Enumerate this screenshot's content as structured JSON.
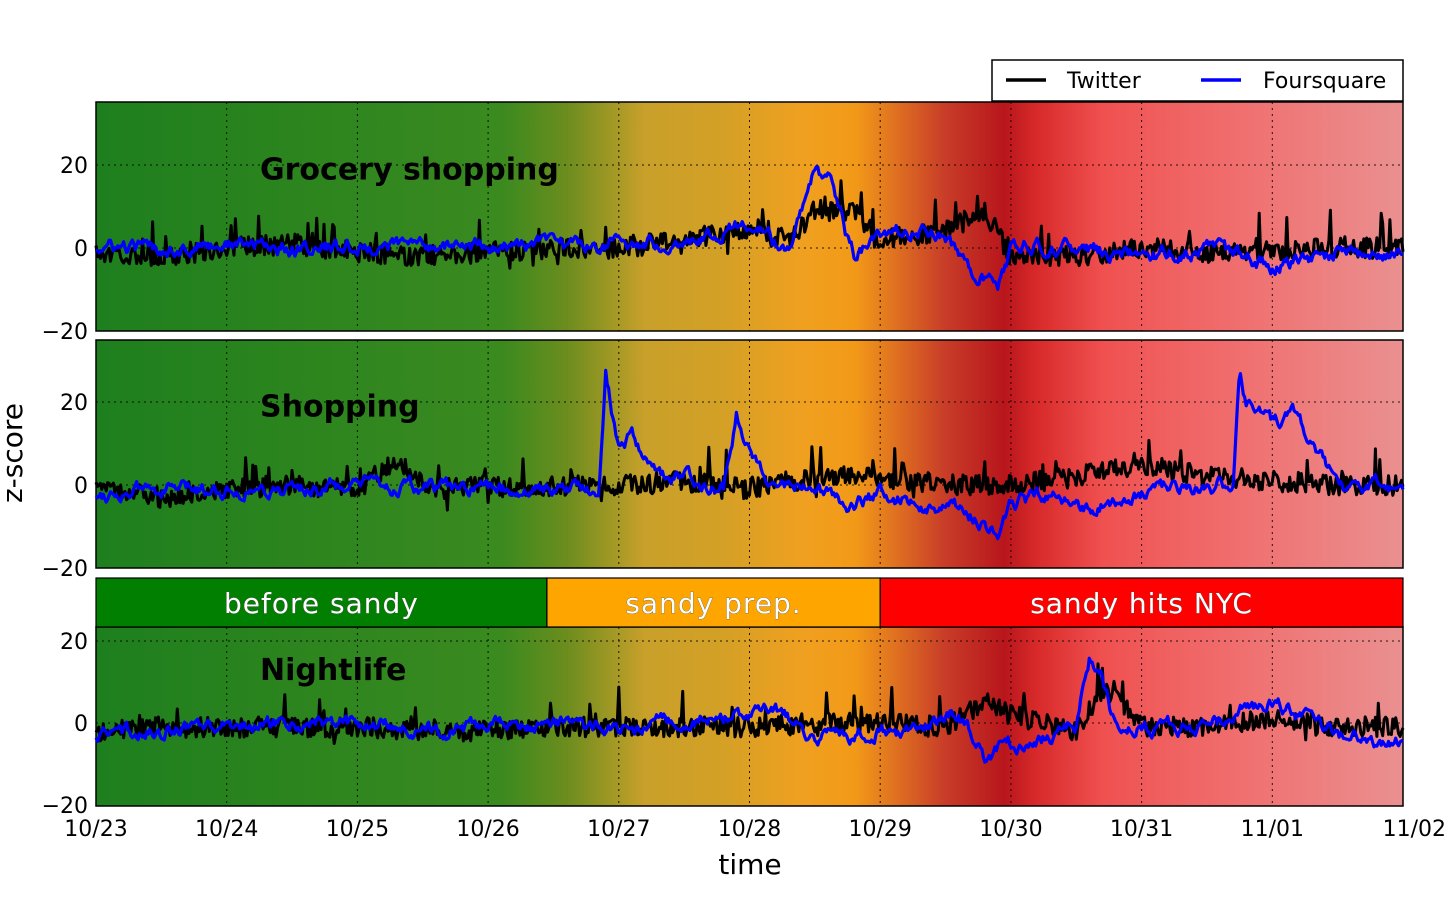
{
  "chart_data": {
    "type": "line",
    "ylabel": "z-score",
    "xlabel": "time",
    "x_ticks": [
      "10/23",
      "10/24",
      "10/25",
      "10/26",
      "10/27",
      "10/28",
      "10/29",
      "10/30",
      "10/31",
      "11/01",
      "11/02"
    ],
    "x_range_days": [
      0,
      10
    ],
    "y_range": [
      -20,
      35
    ],
    "y_ticks": [
      20,
      0,
      -20
    ],
    "y_tick_labels": [
      "20",
      "0",
      "−20"
    ],
    "legend": [
      {
        "name": "Twitter",
        "color": "#000000"
      },
      {
        "name": "Foursquare",
        "color": "#0000ff"
      }
    ],
    "phases": [
      {
        "label": "before sandy",
        "start_day": 0,
        "end_day": 3.45,
        "color": "#007f00"
      },
      {
        "label": "sandy prep.",
        "start_day": 3.45,
        "end_day": 6.0,
        "color": "#ffa500"
      },
      {
        "label": "sandy hits NYC",
        "start_day": 6.0,
        "end_day": 10,
        "color": "#ff0000"
      }
    ],
    "panels": [
      {
        "title": "Grocery shopping",
        "series": [
          {
            "name": "Twitter",
            "x": [
              0,
              0.5,
              1,
              1.5,
              2,
              2.5,
              3,
              3.5,
              4,
              4.5,
              5,
              5.3,
              5.5,
              5.8,
              6,
              6.5,
              6.8,
              7,
              7.5,
              8,
              8.5,
              9,
              9.5,
              10
            ],
            "y": [
              -1,
              -2,
              0,
              1,
              -1,
              -2,
              -1,
              0,
              0,
              2,
              5,
              2,
              9,
              9,
              2,
              4,
              9,
              -2,
              -2,
              0,
              -1,
              -1,
              0,
              0
            ]
          },
          {
            "name": "Foursquare",
            "x": [
              0,
              0.5,
              1,
              1.5,
              2,
              2.5,
              3,
              3.5,
              4,
              4.5,
              5,
              5.3,
              5.5,
              5.6,
              5.8,
              6,
              6.4,
              6.7,
              6.9,
              7,
              7.5,
              8,
              8.5,
              9,
              9.5,
              10
            ],
            "y": [
              0,
              0,
              1,
              0,
              0,
              1,
              0,
              1,
              1,
              2,
              6,
              -1,
              18,
              16,
              -2,
              3,
              5,
              -5,
              -10,
              0,
              0,
              -2,
              0,
              -4,
              -1,
              -2
            ]
          }
        ]
      },
      {
        "title": "Shopping",
        "series": [
          {
            "name": "Twitter",
            "x": [
              0,
              0.5,
              1,
              1.5,
              2,
              2.3,
              2.6,
              3,
              3.2,
              3.5,
              4,
              4.5,
              5,
              5.5,
              6,
              6.5,
              7,
              7.5,
              8,
              8.5,
              9,
              9.5,
              10
            ],
            "y": [
              0,
              -3,
              -1,
              0,
              -1,
              6,
              -1,
              0,
              -1,
              0,
              0,
              1,
              -1,
              2,
              2,
              0,
              0,
              2,
              5,
              2,
              1,
              0,
              0
            ]
          },
          {
            "name": "Foursquare",
            "x": [
              0,
              0.5,
              1,
              1.5,
              2,
              2.5,
              3,
              3.5,
              3.85,
              3.9,
              4,
              4.1,
              4.3,
              4.5,
              4.8,
              4.9,
              5,
              5.2,
              5.5,
              5.8,
              6,
              6.3,
              6.6,
              6.9,
              7,
              7.3,
              7.5,
              8,
              8.5,
              8.7,
              8.75,
              8.8,
              8.9,
              9,
              9.2,
              9.4,
              9.5,
              9.6,
              10
            ],
            "y": [
              -2,
              -1,
              -1,
              -1,
              0,
              -1,
              -1,
              -1,
              0,
              28,
              8,
              13,
              2,
              2,
              0,
              17,
              8,
              1,
              -1,
              -5,
              -2,
              -5,
              -6,
              -11,
              -5,
              -2,
              -6,
              -2,
              0,
              0,
              28,
              20,
              18,
              15,
              17,
              5,
              -1,
              0,
              0
            ]
          }
        ]
      },
      {
        "title": "Nightlife",
        "series": [
          {
            "name": "Twitter",
            "x": [
              0,
              0.5,
              1,
              1.5,
              2,
              2.5,
              3,
              3.5,
              4,
              4.5,
              5,
              5.5,
              6,
              6.5,
              6.8,
              7,
              7.5,
              7.7,
              7.8,
              8,
              8.5,
              9,
              9.5,
              10
            ],
            "y": [
              -2,
              -1,
              -1,
              -1,
              -1,
              -2,
              -2,
              -1,
              -1,
              -1,
              -1,
              0,
              0,
              -1,
              5,
              2,
              -2,
              8,
              7,
              -1,
              -1,
              1,
              -1,
              -1
            ]
          },
          {
            "name": "Foursquare",
            "x": [
              0,
              0.5,
              1,
              1.5,
              2,
              2.5,
              3,
              3.5,
              4,
              4.5,
              5,
              5.2,
              5.5,
              5.8,
              6,
              6.3,
              6.6,
              6.8,
              7,
              7.3,
              7.5,
              7.6,
              7.7,
              7.8,
              8,
              8.5,
              9,
              9.5,
              10
            ],
            "y": [
              -3,
              -2,
              -1,
              0,
              0,
              -2,
              -1,
              0,
              -2,
              1,
              1,
              3,
              -3,
              -3,
              -2,
              -2,
              3,
              -9,
              -5,
              -3,
              0,
              15,
              12,
              -1,
              -1,
              -1,
              6,
              -3,
              -5
            ]
          }
        ]
      }
    ]
  }
}
